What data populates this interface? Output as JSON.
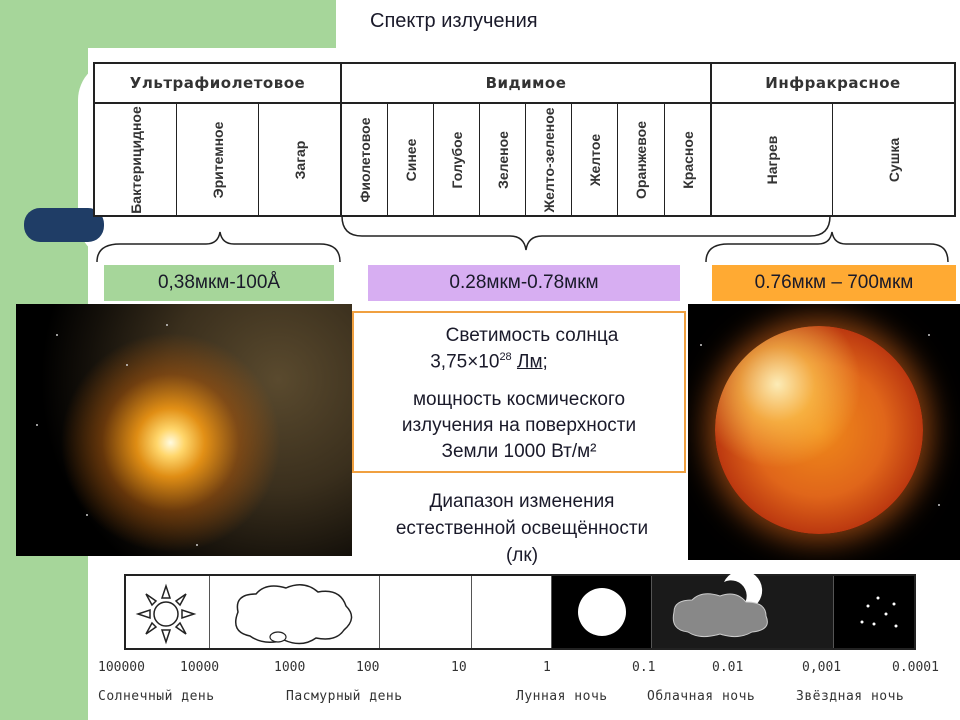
{
  "slide": {
    "title": "Спектр излучения",
    "colors": {
      "green": "#a6d69a",
      "violet": "#d7aef2",
      "orange": "#ffaa33",
      "box_border": "#f0a040",
      "navy": "#1f3d66"
    }
  },
  "spectrum": {
    "groups": [
      {
        "label": "Ультрафиолетовое",
        "items": [
          "Бактерицидное",
          "Эритемное",
          "Загар"
        ]
      },
      {
        "label": "Видимое",
        "items": [
          "Фиолетовое",
          "Синее",
          "Голубое",
          "Зеленое",
          "Желто-зеленое",
          "Желтое",
          "Оранжевое",
          "Красное"
        ]
      },
      {
        "label": "Инфракрасное",
        "items": [
          "Нагрев",
          "Сушка"
        ]
      }
    ]
  },
  "ranges": {
    "uv": "0,38мкм-100Å",
    "visible": "0.28мкм-0.78мкм",
    "infrared": "0.76мкм – 700мкм"
  },
  "info": {
    "luminosity_label": "Светимость солнца",
    "luminosity_mantissa": "3,75×10",
    "luminosity_exponent": "28",
    "luminosity_unit": "Лм",
    "luminosity_end": ";",
    "power_line1": "мощность космического",
    "power_line2": "излучения на поверхности",
    "power_line3": "Земли 1000 Вт/м²"
  },
  "illumination": {
    "title_line1": "Диапазон изменения",
    "title_line2": "естественной освещённости",
    "title_line3": "(лк)",
    "ticks": [
      "100000",
      "10000",
      "1000",
      "100",
      "10",
      "1",
      "0.1",
      "0.01",
      "0,001",
      "0.0001"
    ],
    "conditions": [
      "Солнечный день",
      "Пасмурный день",
      "Лунная ночь",
      "Облачная ночь",
      "Звёздная ночь"
    ]
  }
}
